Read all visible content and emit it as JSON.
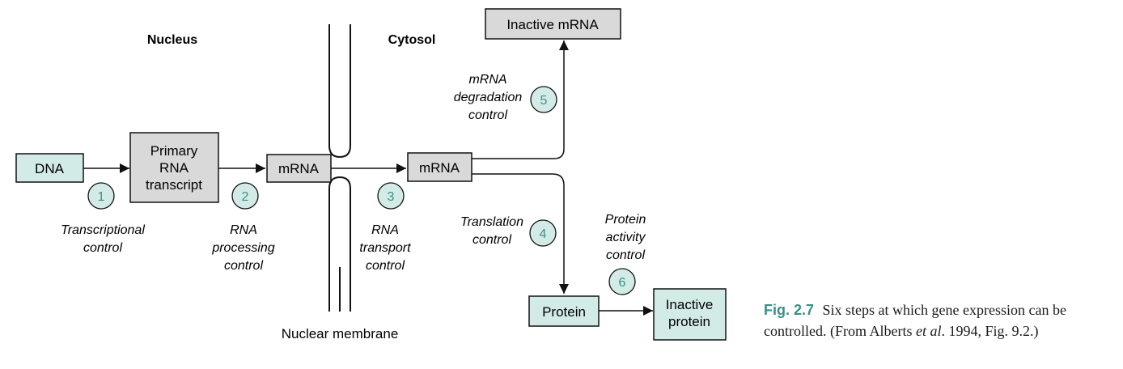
{
  "colors": {
    "teal_fill": "#d3ebe7",
    "gray_fill": "#d9d9d9",
    "circle_text": "#3b8f86",
    "caption_label": "#3b8f86"
  },
  "regions": {
    "nucleus": "Nucleus",
    "cytosol": "Cytosol",
    "membrane": "Nuclear membrane"
  },
  "boxes": {
    "dna": [
      "DNA"
    ],
    "primary_rna": [
      "Primary",
      "RNA",
      "transcript"
    ],
    "mrna_nucleus": [
      "mRNA"
    ],
    "mrna_cytosol": [
      "mRNA"
    ],
    "inactive_mrna": [
      "Inactive mRNA"
    ],
    "protein": [
      "Protein"
    ],
    "inactive_protein": [
      "Inactive",
      "protein"
    ]
  },
  "steps": [
    {
      "num": "1",
      "label": [
        "Transcriptional",
        "control"
      ]
    },
    {
      "num": "2",
      "label": [
        "RNA",
        "processing",
        "control"
      ]
    },
    {
      "num": "3",
      "label": [
        "RNA",
        "transport",
        "control"
      ]
    },
    {
      "num": "4",
      "label": [
        "Translation",
        "control"
      ]
    },
    {
      "num": "5",
      "label": [
        "mRNA",
        "degradation",
        "control"
      ]
    },
    {
      "num": "6",
      "label": [
        "Protein",
        "activity",
        "control"
      ]
    }
  ],
  "caption": {
    "label": "Fig. 2.7",
    "text_before": "Six steps at which gene expression can be controlled. (From Alberts ",
    "italic": "et al",
    "text_after": ". 1994, Fig. 9.2.)"
  }
}
